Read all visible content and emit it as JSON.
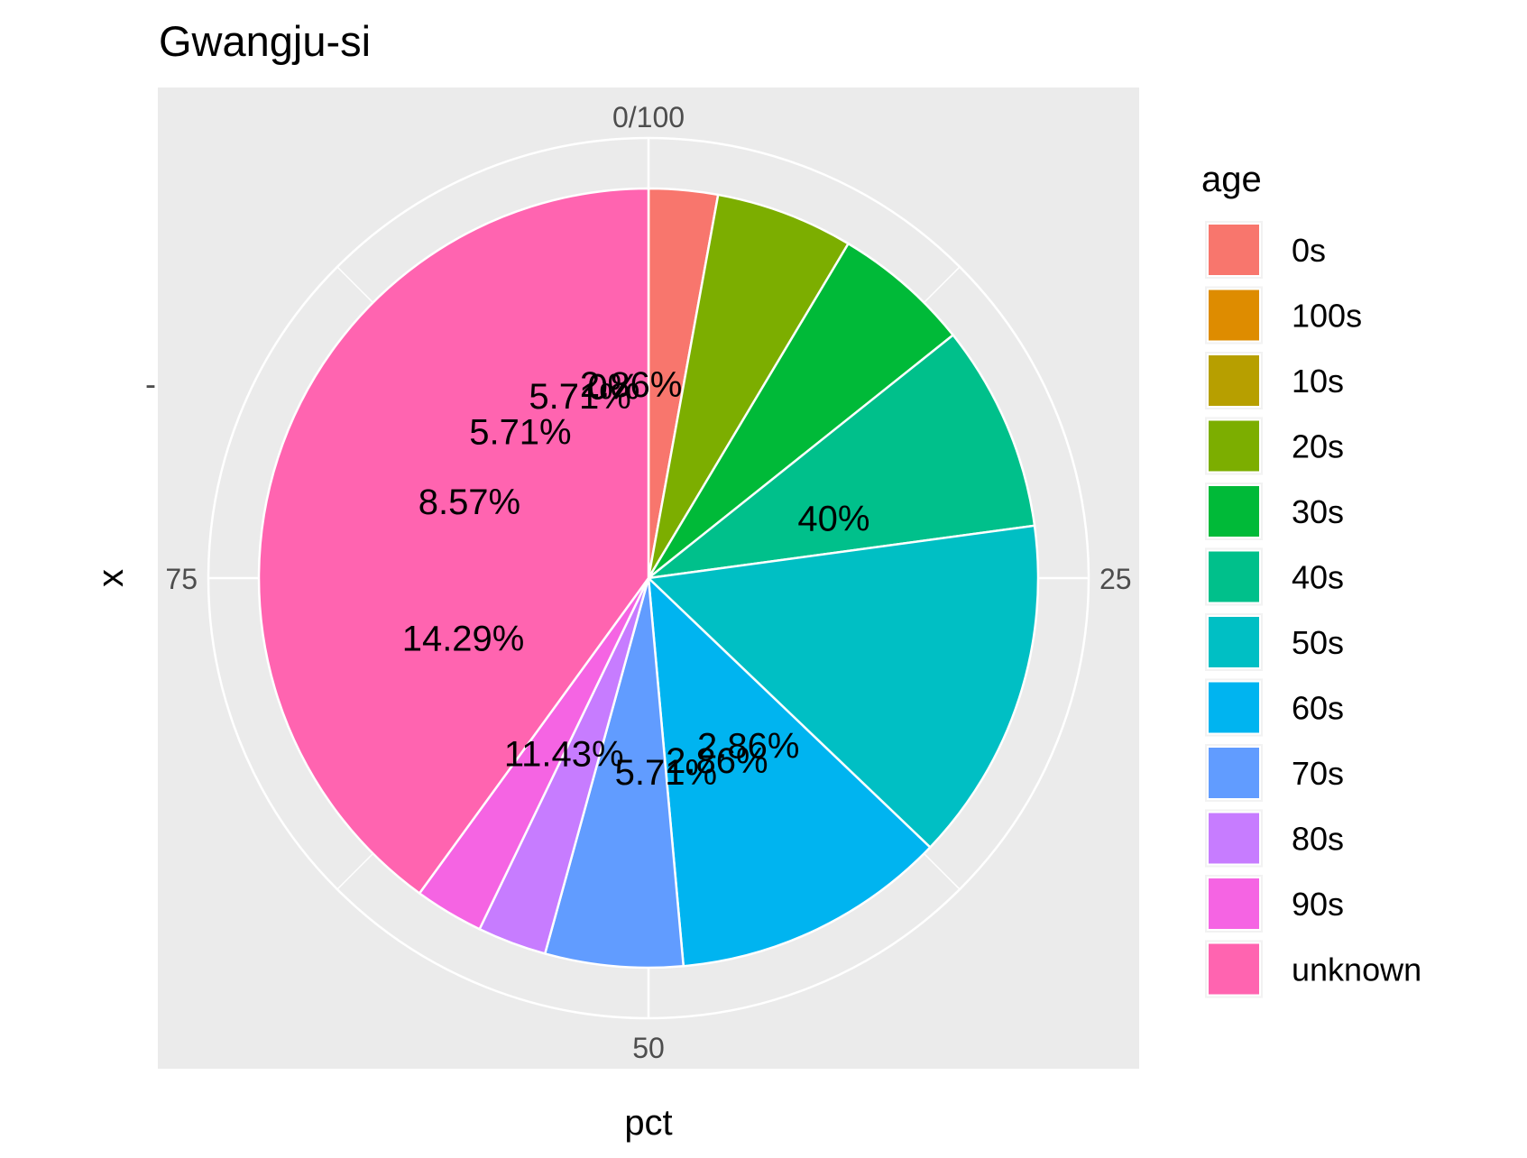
{
  "chart_data": {
    "type": "pie",
    "title": "Gwangju-si",
    "xlabel": "pct",
    "ylabel": "x",
    "y_tick_label": "-",
    "angular_ticks": [
      "0/100",
      "25",
      "50",
      "75"
    ],
    "legend": {
      "title": "age",
      "position": "right"
    },
    "slices": [
      {
        "label": "0s",
        "value": 2.86,
        "text": "2.86%",
        "color": "#F8766D"
      },
      {
        "label": "100s",
        "value": 0,
        "text": "0%",
        "color": "#DE8C00"
      },
      {
        "label": "10s",
        "value": 0,
        "text": "0%",
        "color": "#B79F00"
      },
      {
        "label": "20s",
        "value": 5.71,
        "text": "5.71%",
        "color": "#7CAE00"
      },
      {
        "label": "30s",
        "value": 5.71,
        "text": "5.71%",
        "color": "#00BA38"
      },
      {
        "label": "40s",
        "value": 8.57,
        "text": "8.57%",
        "color": "#00C08B"
      },
      {
        "label": "50s",
        "value": 14.29,
        "text": "14.29%",
        "color": "#00BFC4"
      },
      {
        "label": "60s",
        "value": 11.43,
        "text": "11.43%",
        "color": "#00B4F0"
      },
      {
        "label": "70s",
        "value": 5.71,
        "text": "5.71%",
        "color": "#619CFF"
      },
      {
        "label": "80s",
        "value": 2.86,
        "text": "2.86%",
        "color": "#C77CFF"
      },
      {
        "label": "90s",
        "value": 2.86,
        "text": "2.86%",
        "color": "#F564E3"
      },
      {
        "label": "unknown",
        "value": 40,
        "text": "40%",
        "color": "#FF64B0"
      }
    ],
    "panel_background": "#EBEBEB",
    "grid_color": "#FFFFFF",
    "grid": true
  }
}
